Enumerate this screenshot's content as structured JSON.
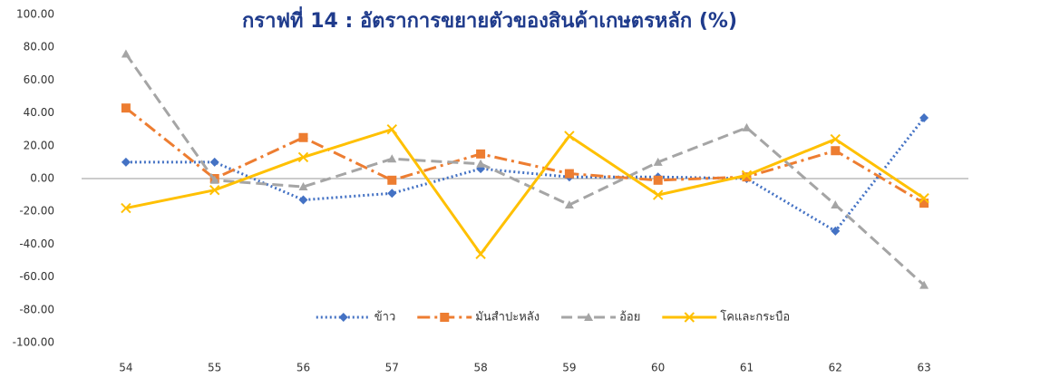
{
  "chart_data": {
    "type": "line",
    "title": "กราฟที่ 14 : อัตราการขยายตัวของสินค้าเกษตรหลัก (%)",
    "categories": [
      "54",
      "55",
      "56",
      "57",
      "58",
      "59",
      "60",
      "61",
      "62",
      "63"
    ],
    "series": [
      {
        "name": "ข้าว",
        "color": "#4472c4",
        "marker": "diamond",
        "line_style": "dotted",
        "values": [
          10,
          10,
          -13,
          -9,
          6,
          1,
          1,
          0,
          -32,
          37
        ]
      },
      {
        "name": "มันสำปะหลัง",
        "color": "#ed7d31",
        "marker": "square",
        "line_style": "dashdot",
        "values": [
          43,
          0,
          25,
          -1,
          15,
          3,
          -1,
          1,
          17,
          -15
        ]
      },
      {
        "name": "อ้อย",
        "color": "#a5a5a5",
        "marker": "triangle",
        "line_style": "dashed",
        "values": [
          76,
          -1,
          -5,
          12,
          9,
          -16,
          10,
          31,
          -16,
          -65
        ]
      },
      {
        "name": "โคและกระบือ",
        "color": "#ffc000",
        "marker": "x",
        "line_style": "solid",
        "values": [
          -18,
          -7,
          13,
          30,
          -46,
          26,
          -10,
          2,
          24,
          -12
        ]
      }
    ],
    "ylim": [
      -100,
      100
    ],
    "yticks": [
      {
        "value": -100,
        "label": "-100.00"
      },
      {
        "value": -80,
        "label": "-80.00"
      },
      {
        "value": -60,
        "label": "-60.00"
      },
      {
        "value": -40,
        "label": "-40.00"
      },
      {
        "value": -20,
        "label": "-20.00"
      },
      {
        "value": 0,
        "label": "0.00"
      },
      {
        "value": 20,
        "label": "20.00"
      },
      {
        "value": 40,
        "label": "40.00"
      },
      {
        "value": 60,
        "label": "60.00"
      },
      {
        "value": 80,
        "label": "80.00"
      },
      {
        "value": 100,
        "label": "100.00"
      }
    ],
    "grid": false,
    "legend": "bottom"
  }
}
